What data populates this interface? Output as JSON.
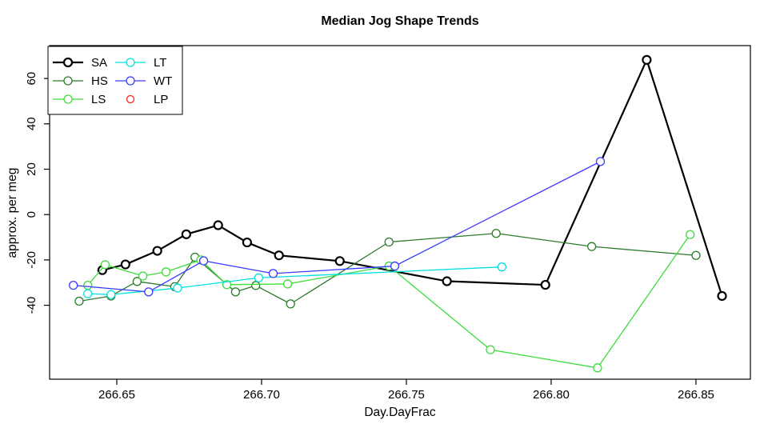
{
  "chart_data": {
    "type": "line",
    "title": "Median Jog Shape Trends",
    "xlabel": "Day.DayFrac",
    "ylabel": "approx. per meg",
    "x_range": [
      266.6268,
      266.8688
    ],
    "y_range": [
      -72.6,
      74.5
    ],
    "grid": false,
    "legend_position": "top-left",
    "point_style": "open-circle",
    "x_ticks": {
      "values": [
        266.65,
        266.7,
        266.75,
        266.8,
        266.85
      ],
      "labels": [
        "266.65",
        "266.70",
        "266.75",
        "266.80",
        "266.85"
      ]
    },
    "y_ticks": {
      "values": [
        -40,
        -20,
        0,
        20,
        40,
        60
      ],
      "labels": [
        "-40",
        "-20",
        "0",
        "20",
        "40",
        "60"
      ]
    },
    "series": [
      {
        "name": "SA",
        "color": "#000000",
        "line_width": 2.2,
        "marker_only": false,
        "points": [
          [
            266.645,
            -24.5
          ],
          [
            266.653,
            -22.0
          ],
          [
            266.664,
            -16.0
          ],
          [
            266.674,
            -8.7
          ],
          [
            266.685,
            -4.7
          ],
          [
            266.695,
            -12.3
          ],
          [
            266.706,
            -18.0
          ],
          [
            266.727,
            -20.5
          ],
          [
            266.764,
            -29.4
          ],
          [
            266.798,
            -31.0
          ],
          [
            266.833,
            68.2
          ],
          [
            266.859,
            -35.9
          ]
        ]
      },
      {
        "name": "HS",
        "color": "#2d7a2d",
        "line_width": 1.3,
        "marker_only": false,
        "points": [
          [
            266.637,
            -38.2
          ],
          [
            266.648,
            -35.9
          ],
          [
            266.657,
            -29.5
          ],
          [
            266.67,
            -31.8
          ],
          [
            266.677,
            -18.8
          ],
          [
            266.691,
            -34.1
          ],
          [
            266.698,
            -31.3
          ],
          [
            266.71,
            -39.4
          ],
          [
            266.744,
            -12.1
          ],
          [
            266.781,
            -8.3
          ],
          [
            266.814,
            -14.1
          ],
          [
            266.85,
            -18.0
          ]
        ]
      },
      {
        "name": "LS",
        "color": "#3ddc3d",
        "line_width": 1.3,
        "marker_only": false,
        "points": [
          [
            266.64,
            -31.2
          ],
          [
            266.646,
            -22.1
          ],
          [
            266.659,
            -27.1
          ],
          [
            266.667,
            -25.3
          ],
          [
            266.679,
            -20.0
          ],
          [
            266.688,
            -30.9
          ],
          [
            266.709,
            -30.6
          ],
          [
            266.744,
            -22.7
          ],
          [
            266.779,
            -59.6
          ],
          [
            266.816,
            -67.6
          ],
          [
            266.848,
            -8.8
          ]
        ]
      },
      {
        "name": "LT",
        "color": "#00e0e0",
        "line_width": 1.3,
        "marker_only": false,
        "points": [
          [
            266.64,
            -34.9
          ],
          [
            266.648,
            -35.3
          ],
          [
            266.671,
            -32.4
          ],
          [
            266.699,
            -27.9
          ],
          [
            266.783,
            -23.1
          ]
        ]
      },
      {
        "name": "WT",
        "color": "#3b3bff",
        "line_width": 1.3,
        "marker_only": false,
        "points": [
          [
            266.635,
            -31.2
          ],
          [
            266.661,
            -34.1
          ],
          [
            266.68,
            -20.4
          ],
          [
            266.704,
            -26.0
          ],
          [
            266.746,
            -22.7
          ],
          [
            266.817,
            23.4
          ]
        ]
      },
      {
        "name": "LP",
        "color": "#ff2222",
        "line_width": 1.3,
        "marker_only": true,
        "points": []
      }
    ]
  }
}
